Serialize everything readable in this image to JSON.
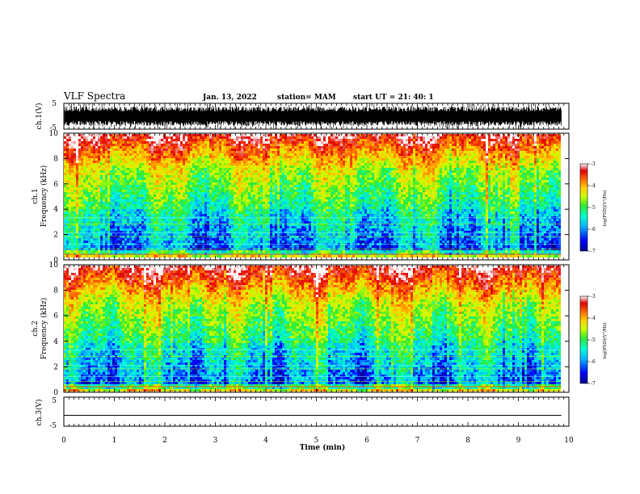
{
  "header": {
    "title": "VLF Spectra",
    "date": "Jan. 13, 2022",
    "station": "station= MAM",
    "start": "start  UT =   21: 40: 1"
  },
  "chart_data": [
    {
      "type": "line",
      "panel": "ch1-waveform",
      "ylabel": "ch.1(V)",
      "yticks": [
        "5",
        "-5"
      ],
      "ylim": [
        -5,
        5
      ],
      "signal": "dense black broadband waveform, roughly +/-3 to +/-4 V",
      "xlim": [
        0,
        10
      ]
    },
    {
      "type": "heatmap",
      "panel": "ch1-spectrogram",
      "ylabel": "ch.1",
      "ylabel2": "Frequency (kHz)",
      "yticks": [
        "0",
        "2",
        "4",
        "6",
        "8",
        "10"
      ],
      "ylim": [
        0,
        10
      ],
      "xlim": [
        0,
        9.85
      ],
      "colorscale": [
        "#00008f",
        "#0000ff",
        "#00b4ff",
        "#00ffd0",
        "#30e830",
        "#c8ff00",
        "#ffd200",
        "#ff6a00",
        "#e00000",
        "#ffffff"
      ],
      "colorbar": {
        "label": "log(PSD)(V²/Hz)",
        "ticks": [
          "-3",
          "-4",
          "-5",
          "-6",
          "-7"
        ],
        "range": [
          -7,
          -3
        ]
      }
    },
    {
      "type": "heatmap",
      "panel": "ch2-spectrogram",
      "ylabel": "ch.2",
      "ylabel2": "Frequency (kHz)",
      "yticks": [
        "0",
        "2",
        "4",
        "6",
        "8",
        "10"
      ],
      "ylim": [
        0,
        10
      ],
      "xlim": [
        0,
        9.85
      ],
      "colorscale": [
        "#00008f",
        "#0000ff",
        "#00b4ff",
        "#00ffd0",
        "#30e830",
        "#c8ff00",
        "#ffd200",
        "#ff6a00",
        "#e00000",
        "#ffffff"
      ],
      "colorbar": {
        "label": "log(PSD)(V²/Hz)",
        "ticks": [
          "-3",
          "-4",
          "-5",
          "-6",
          "-7"
        ],
        "range": [
          -7,
          -3
        ]
      }
    },
    {
      "type": "line",
      "panel": "ch3-waveform",
      "ylabel": "ch.3(V)",
      "yticks": [
        "5",
        "-5"
      ],
      "ylim": [
        -5,
        5
      ],
      "values": [
        -1.5,
        -1.5
      ],
      "x": [
        0,
        9.85
      ]
    }
  ],
  "xaxis": {
    "label": "Time (min)",
    "ticks": [
      "0",
      "1",
      "2",
      "3",
      "4",
      "5",
      "6",
      "7",
      "8",
      "9",
      "10"
    ],
    "range": [
      0,
      10
    ]
  }
}
